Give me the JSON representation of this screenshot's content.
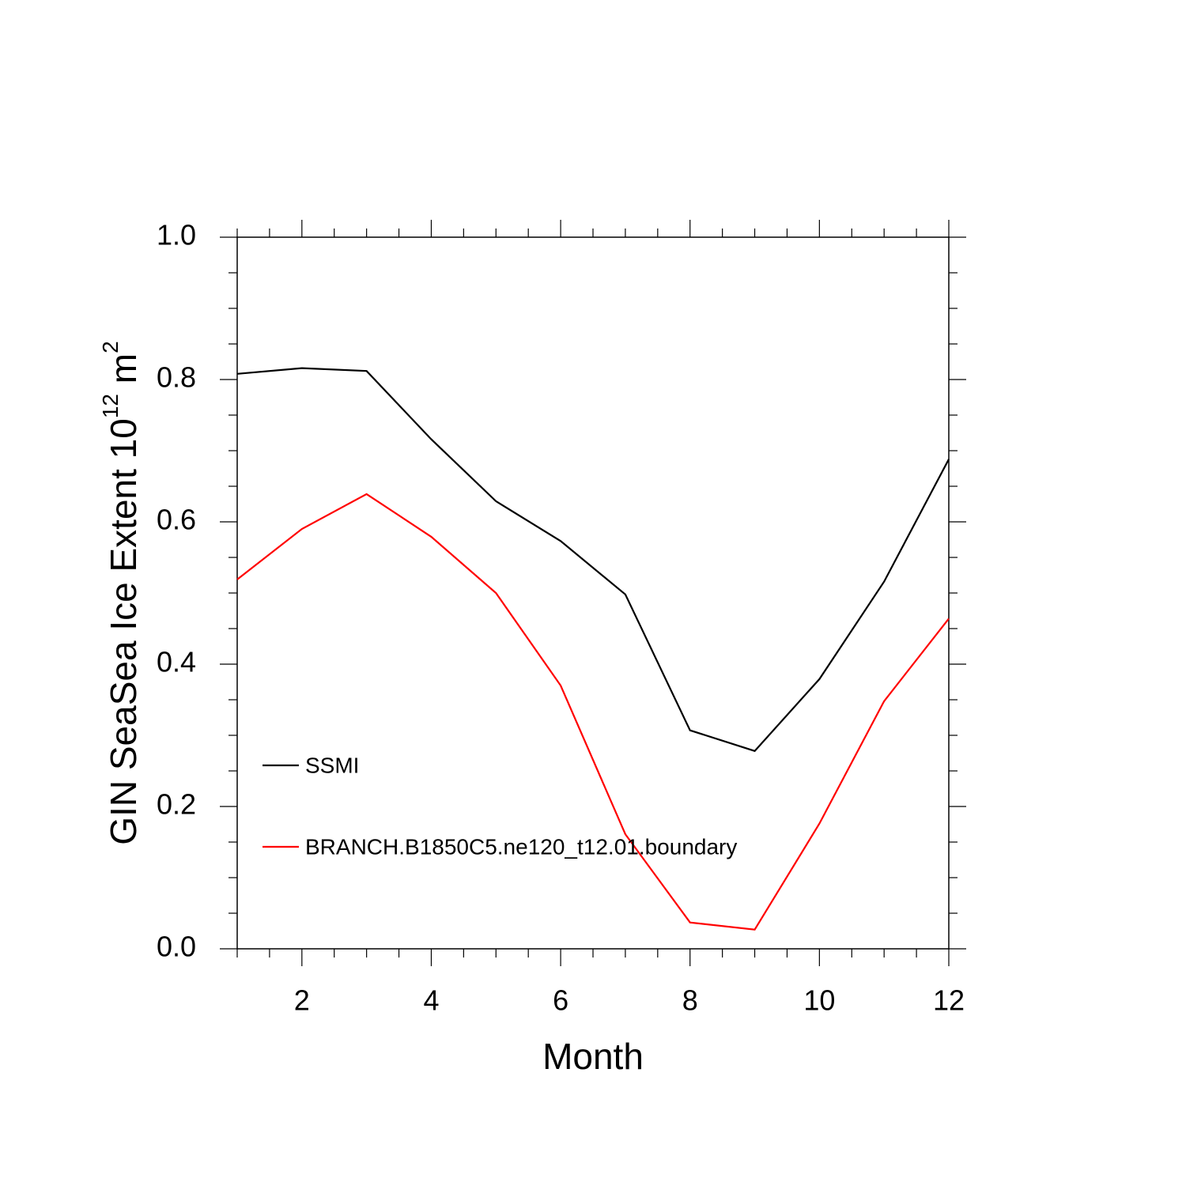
{
  "chart_data": {
    "type": "line",
    "x_label": "Month",
    "y_label": [
      "GIN SeaSea Ice Extent 10",
      "12",
      " m",
      "2"
    ],
    "x": [
      1,
      2,
      3,
      4,
      5,
      6,
      7,
      8,
      9,
      10,
      11,
      12
    ],
    "series": [
      {
        "name": "SSMI",
        "color": "#000000",
        "values": [
          0.808,
          0.816,
          0.812,
          0.716,
          0.629,
          0.573,
          0.498,
          0.307,
          0.278,
          0.379,
          0.516,
          0.688
        ]
      },
      {
        "name": "BRANCH.B1850C5.ne120_t12.01.boundary",
        "color": "#ff0000",
        "values": [
          0.519,
          0.59,
          0.639,
          0.579,
          0.5,
          0.37,
          0.161,
          0.037,
          0.027,
          0.176,
          0.348,
          0.464
        ]
      }
    ],
    "xlim": [
      1,
      12
    ],
    "ylim": [
      0,
      1
    ],
    "xticks": [
      2,
      4,
      6,
      8,
      10,
      12
    ],
    "yticks": [
      {
        "value": 0,
        "label": "0.0"
      },
      0.2,
      0.4,
      0.6,
      0.8,
      {
        "value": 1,
        "label": "1.0"
      }
    ],
    "x_minor_ticks": [
      1,
      1.5,
      2.5,
      3,
      3.5,
      4.5,
      5,
      5.5,
      6.5,
      7,
      7.5,
      8.5,
      9,
      9.5,
      10.5,
      11,
      11.5
    ],
    "y_minor_ticks": [
      0.05,
      0.1,
      0.15,
      0.25,
      0.3,
      0.35,
      0.45,
      0.5,
      0.55,
      0.65,
      0.7,
      0.75,
      0.85,
      0.9,
      0.95
    ],
    "grid": false,
    "legend": "lower left"
  }
}
